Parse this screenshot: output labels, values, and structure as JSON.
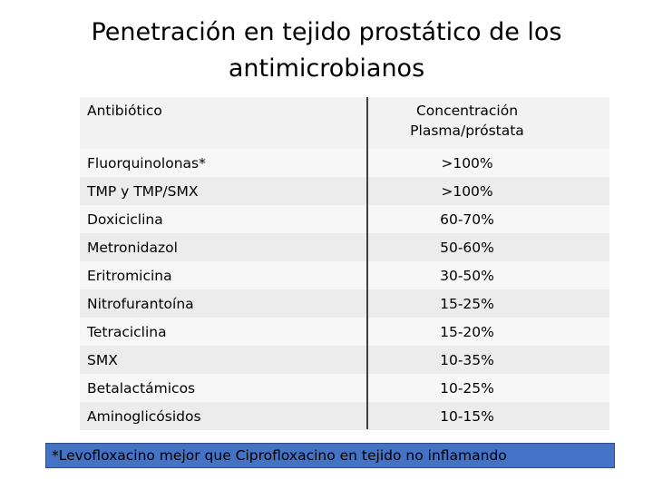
{
  "title": "Penetración en tejido prostático de los antimicrobianos",
  "table": {
    "headers": [
      "Antibiótico",
      "Concentración Plasma/próstata"
    ],
    "rows": [
      [
        "Fluorquinolonas*",
        ">100%"
      ],
      [
        "TMP y TMP/SMX",
        ">100%"
      ],
      [
        "Doxiciclina",
        "60-70%"
      ],
      [
        "Metronidazol",
        "50-60%"
      ],
      [
        "Eritromicina",
        "30-50%"
      ],
      [
        "Nitrofurantoína",
        "15-25%"
      ],
      [
        "Tetraciclina",
        "15-20%"
      ],
      [
        "SMX",
        "10-35%"
      ],
      [
        "Betalactámicos",
        "10-25%"
      ],
      [
        "Aminoglicósidos",
        "10-15%"
      ]
    ]
  },
  "footnote": "*Levofloxacino mejor que Ciprofloxacino en tejido no inflamando"
}
